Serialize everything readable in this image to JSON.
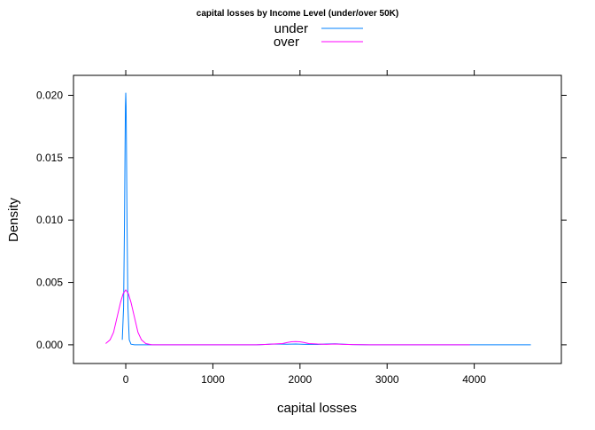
{
  "chart_data": {
    "type": "line",
    "title": "capital losses by Income Level (under/over 50K)",
    "xlabel": "capital losses",
    "ylabel": "Density",
    "xlim": [
      -600,
      5000
    ],
    "ylim": [
      -0.0015,
      0.0216
    ],
    "x_ticks": [
      0,
      1000,
      2000,
      3000,
      4000
    ],
    "x_tick_labels": [
      "0",
      "1000",
      "2000",
      "3000",
      "4000"
    ],
    "y_ticks": [
      0.0,
      0.005,
      0.01,
      0.015,
      0.02
    ],
    "y_tick_labels": [
      "0.000",
      "0.005",
      "0.010",
      "0.015",
      "0.020"
    ],
    "legend": {
      "position": "top",
      "items": [
        {
          "name": "under",
          "color": "#0080ff"
        },
        {
          "name": "over",
          "color": "#ff00ff"
        }
      ]
    },
    "series": [
      {
        "name": "under",
        "color": "#0080ff",
        "x": [
          -40,
          -25,
          -15,
          -8,
          -4,
          0,
          4,
          8,
          15,
          25,
          40,
          60,
          100,
          1500,
          1600,
          1700,
          1850,
          1950,
          2050,
          2200,
          2300,
          2400,
          2500,
          2600,
          2800,
          3500,
          4650
        ],
        "y": [
          0.0004,
          0.003,
          0.0095,
          0.016,
          0.0191,
          0.0202,
          0.0191,
          0.016,
          0.0095,
          0.003,
          0.0004,
          5e-05,
          0.0,
          0.0,
          3e-05,
          6e-05,
          5e-05,
          6e-05,
          4e-05,
          3e-05,
          6e-05,
          8e-05,
          5e-05,
          2e-05,
          0.0,
          0.0,
          0.0
        ]
      },
      {
        "name": "over",
        "color": "#ff00ff",
        "x": [
          -230,
          -180,
          -140,
          -100,
          -60,
          -30,
          0,
          30,
          60,
          100,
          140,
          180,
          230,
          300,
          1500,
          1600,
          1700,
          1800,
          1850,
          1900,
          1950,
          2000,
          2050,
          2100,
          2200,
          2300,
          2400,
          2500,
          2600,
          2700,
          2800,
          3000,
          3950
        ],
        "y": [
          0.0001,
          0.0004,
          0.001,
          0.0022,
          0.0034,
          0.0041,
          0.0044,
          0.0041,
          0.0034,
          0.0022,
          0.001,
          0.0004,
          0.0001,
          0.0,
          0.0,
          3e-05,
          6e-05,
          0.0001,
          0.00018,
          0.00024,
          0.00026,
          0.00024,
          0.00018,
          0.0001,
          6e-05,
          4e-05,
          6e-05,
          4e-05,
          2e-05,
          1e-05,
          0.0,
          0.0,
          0.0
        ]
      }
    ]
  }
}
